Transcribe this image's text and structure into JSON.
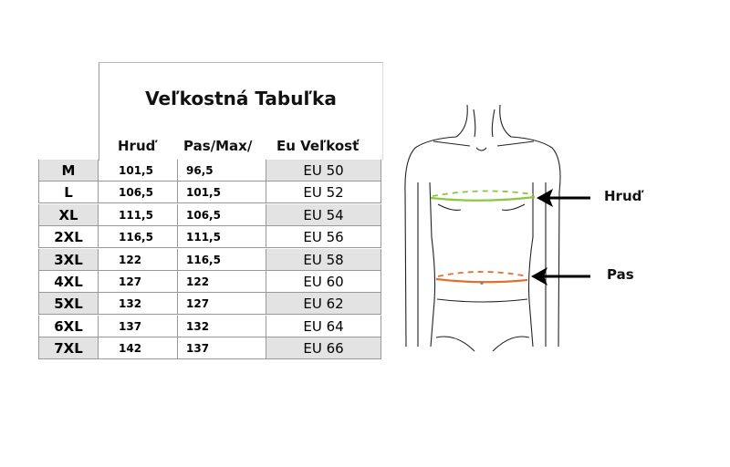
{
  "title": "Veľkostná Tabuľka",
  "columns": [
    "Hruď",
    "Pas/Max/",
    "Eu Veľkosť"
  ],
  "rows": [
    {
      "size": "M",
      "chest": "101,5",
      "waist": "96,5",
      "eu": "EU 50"
    },
    {
      "size": "L",
      "chest": "106,5",
      "waist": "101,5",
      "eu": "EU 52"
    },
    {
      "size": "XL",
      "chest": "111,5",
      "waist": "106,5",
      "eu": "EU 54"
    },
    {
      "size": "2XL",
      "chest": "116,5",
      "waist": "111,5",
      "eu": "EU 56"
    },
    {
      "size": "3XL",
      "chest": "122",
      "waist": "116,5",
      "eu": "EU 58"
    },
    {
      "size": "4XL",
      "chest": "127",
      "waist": "122",
      "eu": "EU 60"
    },
    {
      "size": "5XL",
      "chest": "132",
      "waist": "127",
      "eu": "EU 62"
    },
    {
      "size": "6XL",
      "chest": "137",
      "waist": "132",
      "eu": "EU 64"
    },
    {
      "size": "7XL",
      "chest": "142",
      "waist": "137",
      "eu": "EU 66"
    }
  ],
  "figure": {
    "chest_label": "Hruď",
    "waist_label": "Pas",
    "chest_color": "#8cc63f",
    "waist_color": "#e07030"
  }
}
